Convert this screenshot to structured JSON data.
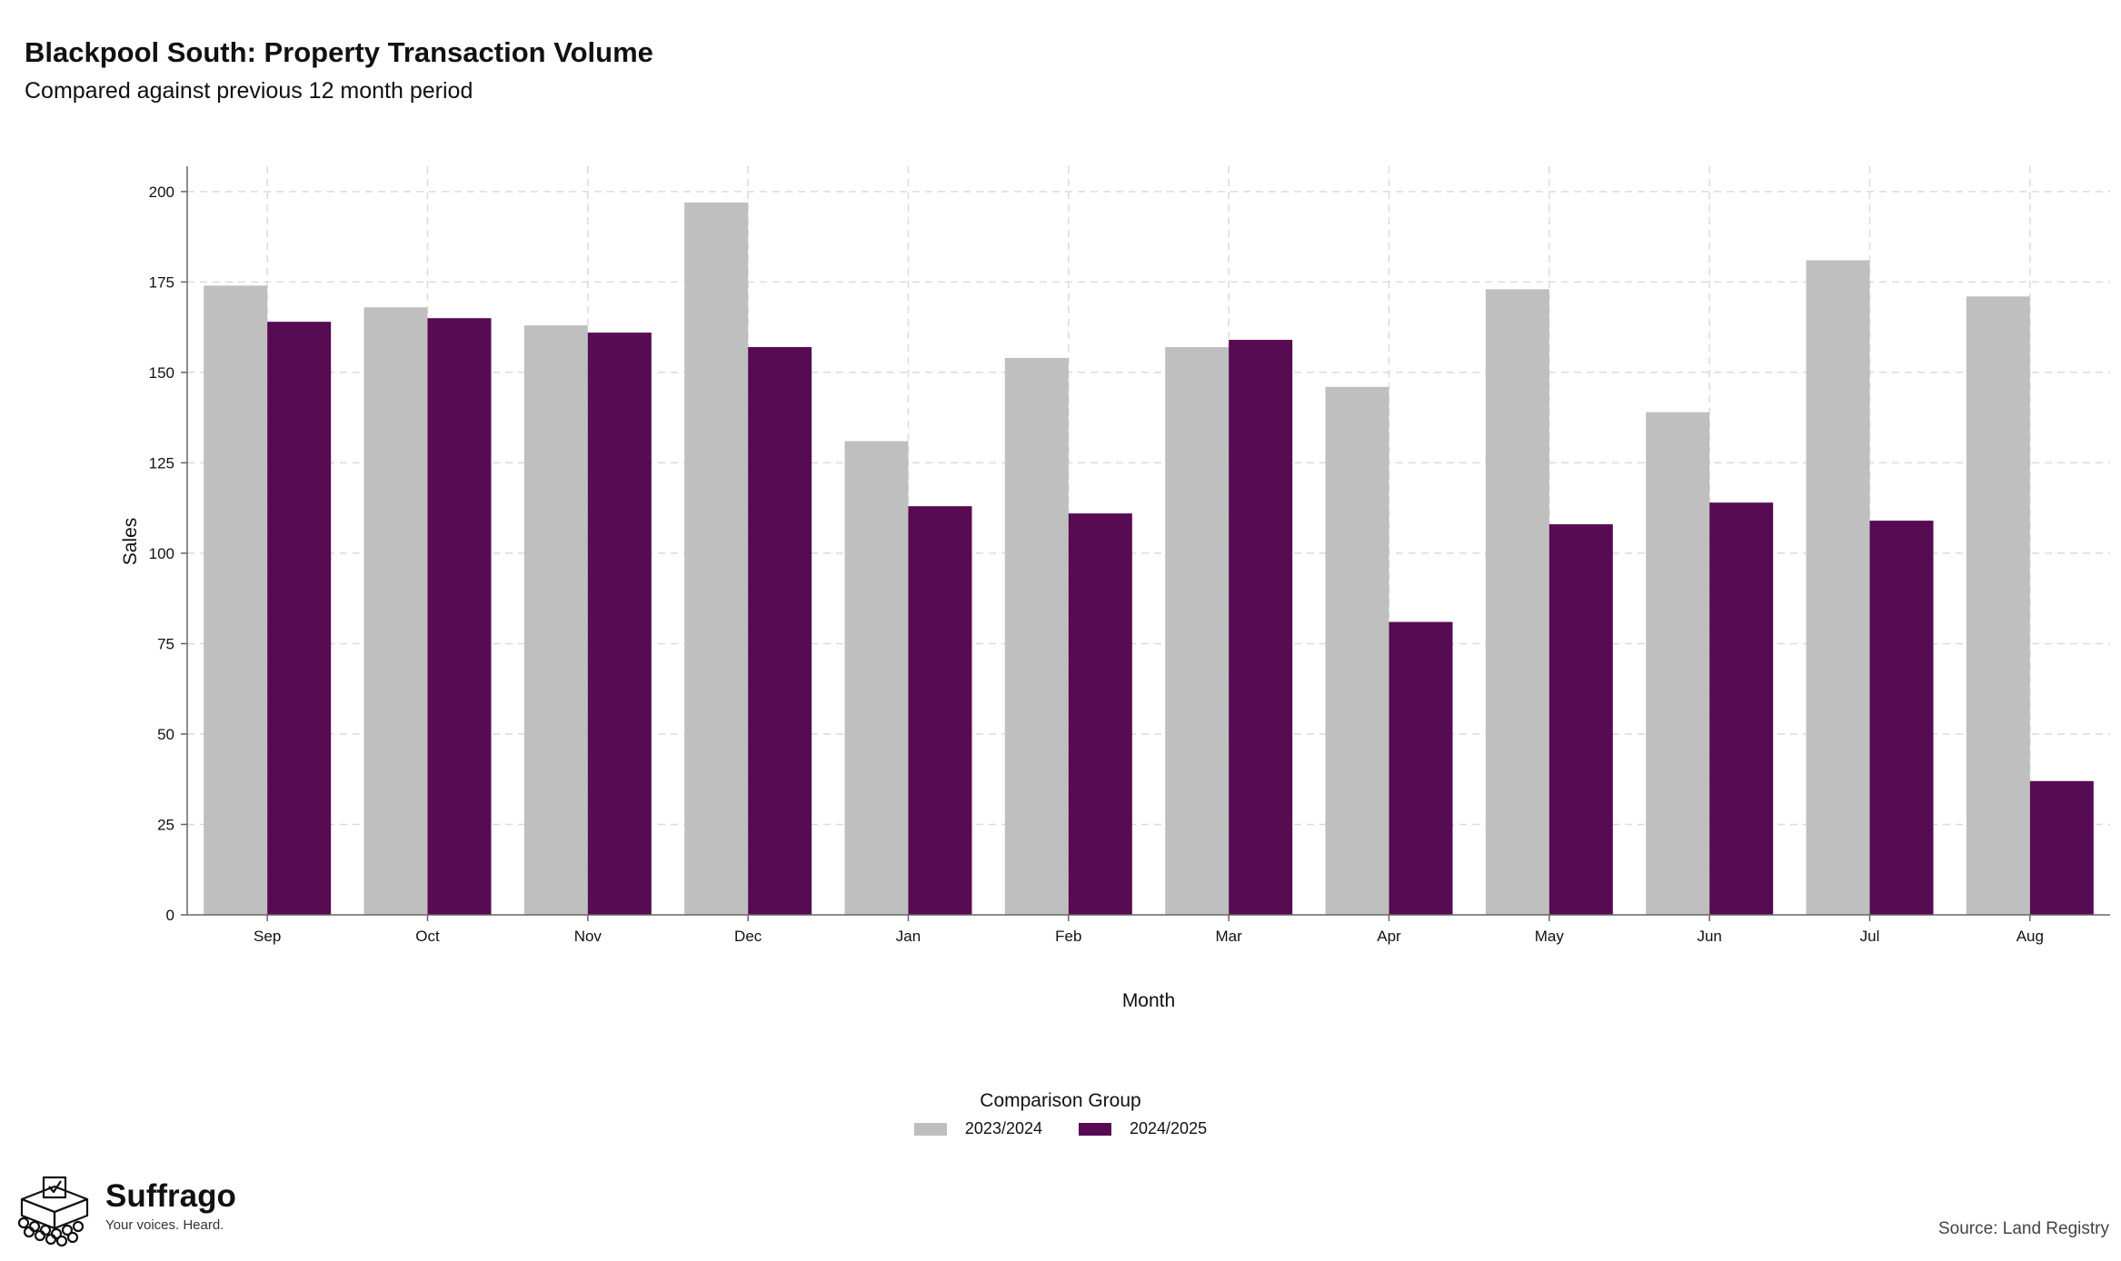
{
  "header": {
    "title": "Blackpool South: Property Transaction Volume",
    "subtitle": "Compared against previous 12 month period"
  },
  "chart_data": {
    "type": "bar",
    "categories": [
      "Sep",
      "Oct",
      "Nov",
      "Dec",
      "Jan",
      "Feb",
      "Mar",
      "Apr",
      "May",
      "Jun",
      "Jul",
      "Aug"
    ],
    "series": [
      {
        "name": "2023/2024",
        "color": "#bfbfbf",
        "values": [
          174,
          168,
          163,
          197,
          131,
          154,
          157,
          146,
          173,
          139,
          181,
          171
        ]
      },
      {
        "name": "2024/2025",
        "color": "#560b53",
        "values": [
          164,
          165,
          161,
          157,
          113,
          111,
          159,
          81,
          108,
          114,
          109,
          37
        ]
      }
    ],
    "xlabel": "Month",
    "ylabel": "Sales",
    "ylim": [
      0,
      207
    ],
    "yticks": [
      0,
      25,
      50,
      75,
      100,
      125,
      150,
      175,
      200
    ],
    "grid": true,
    "legend_title": "Comparison Group",
    "legend_position": "bottom"
  },
  "footer": {
    "brand_name": "Suffrago",
    "brand_tagline": "Your voices. Heard.",
    "source": "Source: Land Registry",
    "logo_icon": "ballot-box-icon"
  }
}
